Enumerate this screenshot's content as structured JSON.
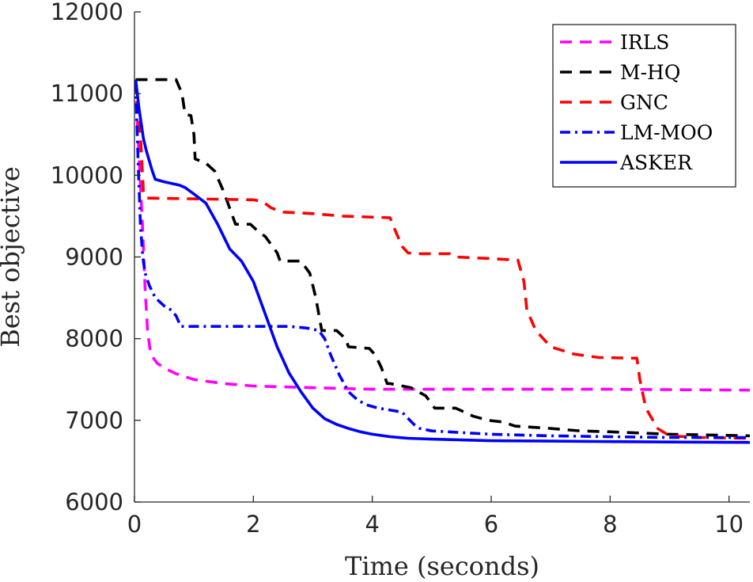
{
  "chart_data": {
    "type": "line",
    "title": "",
    "xlabel": "Time (seconds)",
    "ylabel": "Best objective",
    "xlim": [
      0,
      10.35
    ],
    "ylim": [
      6000,
      12000
    ],
    "xticks": [
      0,
      2,
      4,
      6,
      8,
      10
    ],
    "yticks": [
      6000,
      7000,
      8000,
      9000,
      10000,
      11000,
      12000
    ],
    "xtick_labels": [
      "0",
      "2",
      "4",
      "6",
      "8",
      "10"
    ],
    "ytick_labels": [
      "6000",
      "7000",
      "8000",
      "9000",
      "10000",
      "11000",
      "12000"
    ],
    "grid": false,
    "legend_position": "top-right",
    "series": [
      {
        "name": "IRLS",
        "color": "#ff00ff",
        "style": "dashed",
        "x": [
          0.02,
          0.05,
          0.1,
          0.14,
          0.18,
          0.22,
          0.26,
          0.3,
          0.38,
          0.5,
          0.7,
          1.0,
          1.5,
          2.0,
          3.0,
          4.0,
          6.0,
          8.0,
          10.35
        ],
        "y": [
          11150,
          10600,
          9900,
          9300,
          8600,
          8100,
          7880,
          7780,
          7700,
          7640,
          7570,
          7500,
          7450,
          7420,
          7400,
          7380,
          7380,
          7380,
          7370
        ]
      },
      {
        "name": "M-HQ",
        "color": "#000000",
        "style": "dashed",
        "x": [
          0.02,
          0.7,
          0.8,
          0.85,
          0.95,
          1.0,
          1.02,
          1.2,
          1.35,
          1.5,
          1.6,
          1.7,
          1.95,
          2.1,
          2.2,
          2.4,
          2.45,
          2.8,
          2.95,
          3.05,
          3.1,
          3.15,
          3.4,
          3.55,
          3.6,
          3.95,
          4.05,
          4.15,
          4.25,
          4.3,
          4.65,
          4.9,
          5.05,
          5.4,
          5.55,
          5.7,
          5.95,
          6.2,
          6.4,
          7.0,
          7.5,
          8.0,
          9.0,
          10.35
        ],
        "y": [
          11170,
          11170,
          11000,
          10750,
          10730,
          10500,
          10200,
          10150,
          10050,
          9800,
          9600,
          9400,
          9400,
          9300,
          9250,
          9050,
          8950,
          8950,
          8800,
          8500,
          8300,
          8100,
          8100,
          8000,
          7900,
          7880,
          7800,
          7650,
          7450,
          7450,
          7400,
          7300,
          7150,
          7150,
          7100,
          7050,
          7000,
          6980,
          6930,
          6900,
          6870,
          6860,
          6830,
          6810
        ]
      },
      {
        "name": "GNC",
        "color": "#ff0000",
        "style": "dashed",
        "x": [
          0.02,
          0.1,
          0.15,
          0.2,
          2.0,
          2.15,
          2.3,
          2.5,
          3.0,
          3.5,
          4.3,
          4.4,
          4.5,
          4.6,
          4.7,
          5.3,
          5.4,
          6.0,
          6.45,
          6.55,
          6.6,
          6.75,
          7.0,
          7.4,
          7.8,
          8.45,
          8.5,
          8.6,
          8.8,
          9.0,
          9.5,
          10.35
        ],
        "y": [
          11150,
          10500,
          9800,
          9720,
          9700,
          9680,
          9600,
          9550,
          9530,
          9500,
          9480,
          9300,
          9130,
          9050,
          9040,
          9040,
          9000,
          8980,
          8960,
          8700,
          8350,
          8100,
          7900,
          7810,
          7770,
          7760,
          7500,
          7150,
          6900,
          6810,
          6790,
          6780
        ]
      },
      {
        "name": "LM-MOO",
        "color": "#0000ff",
        "style": "dashdot",
        "x": [
          0.02,
          0.06,
          0.1,
          0.14,
          0.18,
          0.25,
          0.35,
          0.5,
          0.62,
          0.7,
          0.78,
          2.6,
          2.9,
          3.1,
          3.2,
          3.3,
          3.45,
          3.6,
          3.75,
          3.9,
          4.1,
          4.35,
          4.5,
          4.7,
          4.8,
          5.0,
          5.5,
          6.0,
          7.0,
          8.0,
          9.0,
          10.35
        ],
        "y": [
          11150,
          10200,
          9400,
          9000,
          8800,
          8650,
          8500,
          8400,
          8350,
          8280,
          8150,
          8150,
          8130,
          8100,
          8000,
          7800,
          7550,
          7350,
          7250,
          7190,
          7150,
          7120,
          7100,
          6950,
          6900,
          6870,
          6850,
          6830,
          6810,
          6800,
          6790,
          6790
        ]
      },
      {
        "name": "ASKER",
        "color": "#0000ff",
        "style": "solid",
        "x": [
          0.02,
          0.08,
          0.15,
          0.2,
          0.3,
          0.35,
          0.5,
          0.75,
          0.85,
          1.0,
          1.2,
          1.4,
          1.6,
          1.8,
          2.0,
          2.2,
          2.4,
          2.6,
          2.8,
          3.0,
          3.2,
          3.4,
          3.6,
          3.8,
          4.0,
          4.3,
          4.6,
          5.0,
          5.5,
          6.0,
          7.0,
          8.0,
          9.0,
          10.35
        ],
        "y": [
          11170,
          10800,
          10450,
          10300,
          10050,
          9950,
          9920,
          9880,
          9850,
          9770,
          9660,
          9400,
          9100,
          8950,
          8700,
          8300,
          7900,
          7580,
          7350,
          7150,
          7020,
          6950,
          6900,
          6860,
          6830,
          6800,
          6780,
          6770,
          6760,
          6750,
          6745,
          6740,
          6735,
          6730
        ]
      }
    ]
  }
}
